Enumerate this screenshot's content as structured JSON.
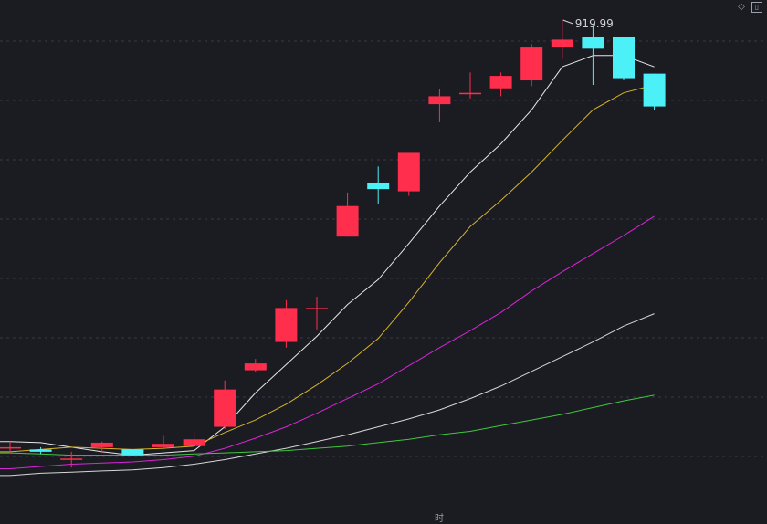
{
  "ui": {
    "diamond_icon": "diamond-icon",
    "window_icon": "window-icon",
    "bottom_mark": "时"
  },
  "chart_data": {
    "type": "candlestick",
    "xlabel": "",
    "ylabel": "",
    "grid": true,
    "max_label": "919.99",
    "colors": {
      "up": "#ff2e4c",
      "down": "#4cf0f7",
      "background": "#1b1b22"
    },
    "ohlc": [
      {
        "open": 542,
        "close": 542,
        "high": 547,
        "low": 537
      },
      {
        "open": 540,
        "close": 538,
        "high": 542,
        "low": 536
      },
      {
        "open": 532,
        "close": 532,
        "high": 538,
        "low": 524
      },
      {
        "open": 542,
        "close": 546,
        "high": 547,
        "low": 537
      },
      {
        "open": 540,
        "close": 535,
        "high": 540,
        "low": 534
      },
      {
        "open": 542,
        "close": 545,
        "high": 552,
        "low": 540
      },
      {
        "open": 543,
        "close": 549,
        "high": 556,
        "low": 542
      },
      {
        "open": 560,
        "close": 593,
        "high": 601,
        "low": 558
      },
      {
        "open": 610,
        "close": 616,
        "high": 620,
        "low": 608
      },
      {
        "open": 635,
        "close": 665,
        "high": 672,
        "low": 630
      },
      {
        "open": 665,
        "close": 665,
        "high": 675,
        "low": 646
      },
      {
        "open": 728,
        "close": 755,
        "high": 767,
        "low": 728
      },
      {
        "open": 775,
        "close": 770,
        "high": 790,
        "low": 757
      },
      {
        "open": 768,
        "close": 802,
        "high": 802,
        "low": 764
      },
      {
        "open": 845,
        "close": 852,
        "high": 858,
        "low": 829
      },
      {
        "open": 855,
        "close": 855,
        "high": 873,
        "low": 850
      },
      {
        "open": 859,
        "close": 870,
        "high": 873,
        "low": 852
      },
      {
        "open": 866,
        "close": 895,
        "high": 898,
        "low": 861
      },
      {
        "open": 895,
        "close": 902,
        "high": 919.99,
        "low": 885
      },
      {
        "open": 904,
        "close": 894,
        "high": 915,
        "low": 862
      },
      {
        "open": 904,
        "close": 868,
        "high": 904,
        "low": 866
      },
      {
        "open": 872,
        "close": 843,
        "high": 872,
        "low": 840
      }
    ],
    "series": [
      {
        "color": "#e8e8e8",
        "values": [
          547,
          546,
          542,
          538,
          535,
          537,
          539,
          560,
          590,
          615,
          640,
          668,
          690,
          722,
          755,
          785,
          810,
          840,
          878,
          888,
          888,
          878
        ]
      },
      {
        "color": "#d4b52a",
        "values": [
          538,
          540,
          542,
          541,
          540,
          541,
          543,
          555,
          566,
          580,
          597,
          616,
          638,
          670,
          705,
          737,
          760,
          785,
          813,
          840,
          855,
          862
        ]
      },
      {
        "color": "#d826d8",
        "values": [
          523,
          525,
          527,
          528,
          529,
          531,
          534,
          541,
          550,
          560,
          572,
          585,
          598,
          614,
          630,
          645,
          661,
          680,
          697,
          713,
          729,
          746
        ]
      },
      {
        "color": "#d6d6d6",
        "values": [
          517,
          519,
          520,
          521,
          522,
          524,
          527,
          531,
          536,
          541,
          547,
          553,
          560,
          567,
          575,
          585,
          596,
          609,
          622,
          635,
          649,
          660
        ]
      },
      {
        "color": "#3fc83f",
        "values": [
          537,
          536,
          535,
          535,
          535,
          535,
          536,
          537,
          538,
          539,
          541,
          543,
          546,
          549,
          553,
          556,
          561,
          566,
          571,
          577,
          583,
          588
        ]
      }
    ],
    "ylim": [
      475,
      937
    ]
  }
}
